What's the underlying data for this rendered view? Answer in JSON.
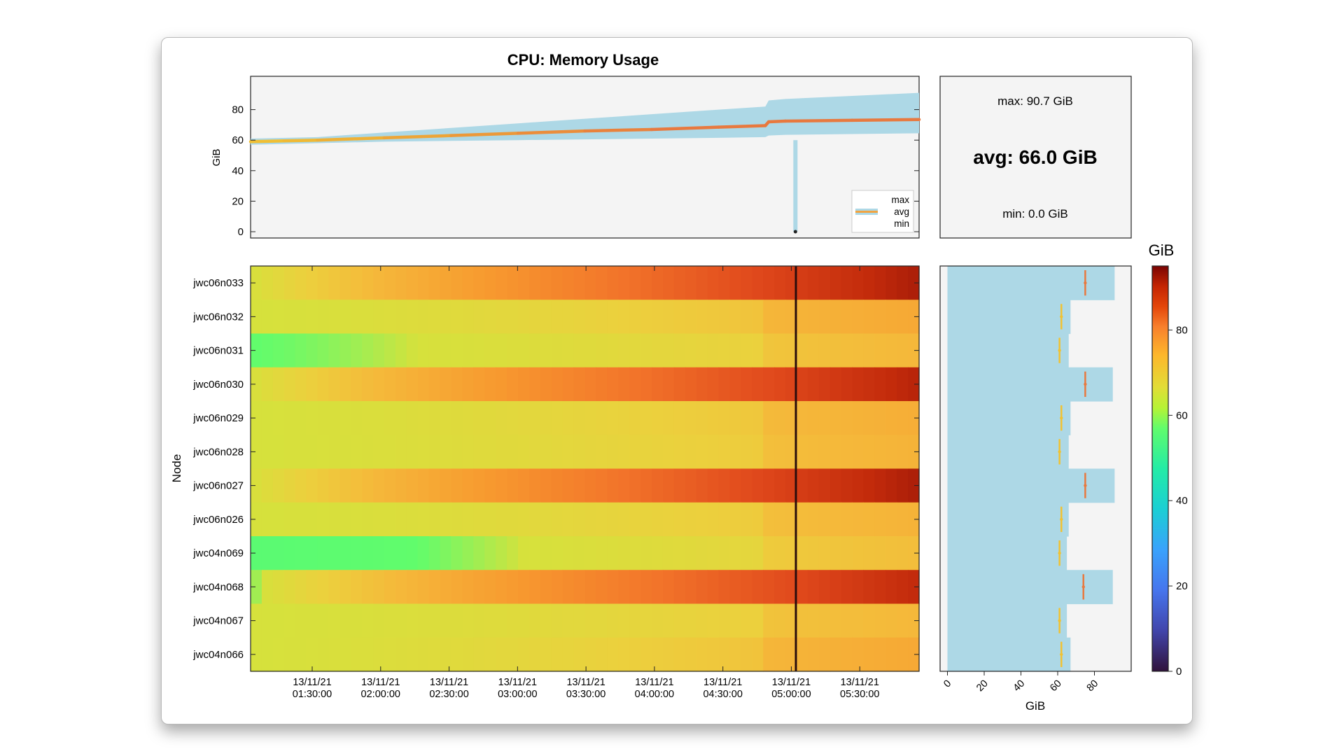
{
  "chart_data": [
    {
      "type": "line",
      "title": "CPU: Memory Usage",
      "ylabel": "GiB",
      "xlabel": "",
      "ylim": [
        0,
        100
      ],
      "yticks": [
        0,
        20,
        40,
        60,
        80
      ],
      "legend": {
        "placement": "bottom-right",
        "entries": [
          "max",
          "avg",
          "min"
        ]
      },
      "series": [
        {
          "name": "avg",
          "x": [
            0,
            0.05,
            0.1,
            0.2,
            0.3,
            0.4,
            0.5,
            0.6,
            0.7,
            0.77,
            0.775,
            0.8,
            0.9,
            1.0
          ],
          "values": [
            59,
            59.5,
            60,
            61.5,
            63,
            64.5,
            66,
            67,
            68.5,
            69.5,
            72,
            72.5,
            73,
            73.5
          ]
        },
        {
          "name": "max",
          "x": [
            0,
            0.1,
            0.2,
            0.3,
            0.4,
            0.5,
            0.6,
            0.7,
            0.77,
            0.775,
            0.8,
            0.9,
            1.0
          ],
          "values": [
            61,
            62,
            65,
            68,
            71,
            74,
            77,
            80,
            82,
            86,
            87,
            89,
            91
          ]
        },
        {
          "name": "min",
          "x": [
            0,
            0.1,
            0.2,
            0.3,
            0.4,
            0.5,
            0.6,
            0.7,
            0.77,
            0.775,
            0.8,
            0.9,
            1.0
          ],
          "values": [
            57,
            58,
            59,
            59.5,
            60,
            60.5,
            61,
            61.5,
            62,
            63,
            63.5,
            64,
            64.5
          ]
        }
      ],
      "dip": {
        "x": 0.815,
        "value": 0
      }
    },
    {
      "type": "table",
      "max_label": "max: 90.7 GiB",
      "avg_label": "avg: 66.0 GiB",
      "min_label": "min: 0.0 GiB"
    },
    {
      "type": "heatmap",
      "ylabel": "Node",
      "xlabel": "",
      "rows": [
        "jwc06n033",
        "jwc06n032",
        "jwc06n031",
        "jwc06n030",
        "jwc06n029",
        "jwc06n028",
        "jwc06n027",
        "jwc06n026",
        "jwc04n069",
        "jwc04n068",
        "jwc04n067",
        "jwc04n066"
      ],
      "xtick_dates": [
        "13/11/21",
        "13/11/21",
        "13/11/21",
        "13/11/21",
        "13/11/21",
        "13/11/21",
        "13/11/21",
        "13/11/21",
        "13/11/21"
      ],
      "xtick_times": [
        "01:30:00",
        "02:00:00",
        "02:30:00",
        "03:00:00",
        "03:30:00",
        "04:00:00",
        "04:30:00",
        "05:00:00",
        "05:30:00"
      ],
      "time_start": "01:03:00",
      "time_end": "05:56:00",
      "marker_time": "05:02:00",
      "row_start_values": [
        58,
        58,
        57,
        58,
        58,
        58,
        58,
        58,
        56,
        57,
        58,
        58
      ],
      "row_end_values": [
        91,
        67,
        64,
        90,
        66,
        65,
        91,
        65,
        63,
        89,
        64,
        67
      ],
      "row_shapes": [
        "high",
        "low",
        "low",
        "high",
        "low",
        "low",
        "high",
        "low",
        "low",
        "high",
        "low",
        "low"
      ]
    },
    {
      "type": "bar",
      "xlabel": "GiB",
      "xticks": [
        0,
        20,
        40,
        60,
        80
      ],
      "xlim": [
        -4,
        100
      ],
      "categories": [
        "jwc06n033",
        "jwc06n032",
        "jwc06n031",
        "jwc06n030",
        "jwc06n029",
        "jwc06n028",
        "jwc06n027",
        "jwc06n026",
        "jwc04n069",
        "jwc04n068",
        "jwc04n067",
        "jwc04n066"
      ],
      "series": [
        {
          "name": "max",
          "values": [
            91,
            67,
            66,
            90,
            67,
            66,
            91,
            66,
            65,
            90,
            65,
            67
          ]
        },
        {
          "name": "avg",
          "values": [
            75,
            62,
            61,
            75,
            62,
            61,
            75,
            62,
            61,
            74,
            61,
            62
          ]
        },
        {
          "name": "min",
          "values": [
            0,
            0,
            0,
            0,
            0,
            0,
            0,
            0,
            0,
            0,
            0,
            0
          ]
        }
      ]
    },
    {
      "type": "heatmap",
      "colorbar_label": "GiB",
      "range": [
        0,
        95
      ],
      "ticks": [
        0,
        20,
        40,
        60,
        80
      ]
    }
  ],
  "colors": {
    "band": "#add8e6",
    "avg_low": "#f1c232",
    "avg_high": "#e8793f",
    "plot_bg": "#f4f4f4",
    "marker_line": "#2a0d0d"
  }
}
